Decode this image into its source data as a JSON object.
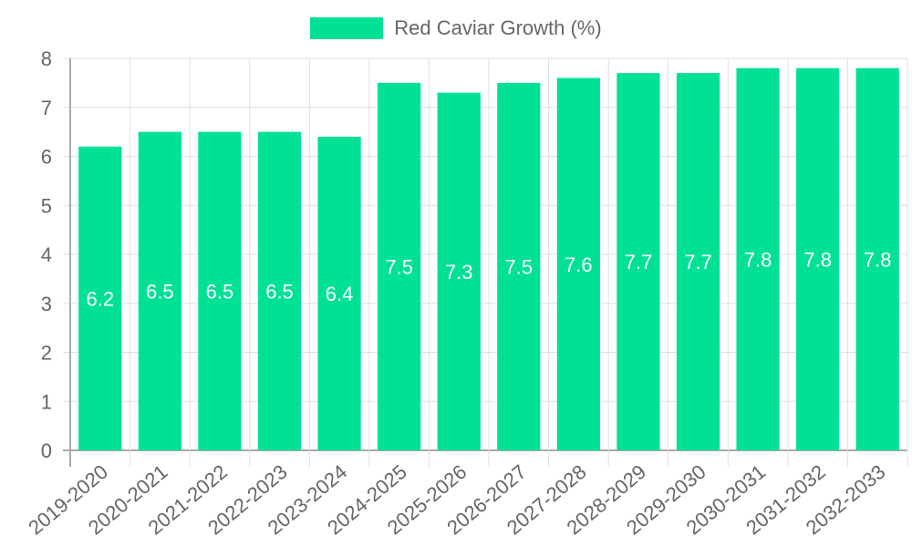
{
  "chart_data": {
    "type": "bar",
    "title": "",
    "xlabel": "",
    "ylabel": "",
    "ylim": [
      0,
      8
    ],
    "yticks": [
      0,
      1,
      2,
      3,
      4,
      5,
      6,
      7,
      8
    ],
    "grid": true,
    "legend_position": "top",
    "categories": [
      "2019-2020",
      "2020-2021",
      "2021-2022",
      "2022-2023",
      "2023-2024",
      "2024-2025",
      "2025-2026",
      "2026-2027",
      "2027-2028",
      "2028-2029",
      "2029-2030",
      "2030-2031",
      "2031-2032",
      "2032-2033"
    ],
    "series": [
      {
        "name": "Red Caviar Growth (%)",
        "color": "#00e096",
        "values": [
          6.2,
          6.5,
          6.5,
          6.5,
          6.4,
          7.5,
          7.3,
          7.5,
          7.6,
          7.7,
          7.7,
          7.8,
          7.8,
          7.8
        ]
      }
    ]
  },
  "legend": {
    "label": "Red Caviar Growth (%)",
    "color": "#00e096"
  }
}
